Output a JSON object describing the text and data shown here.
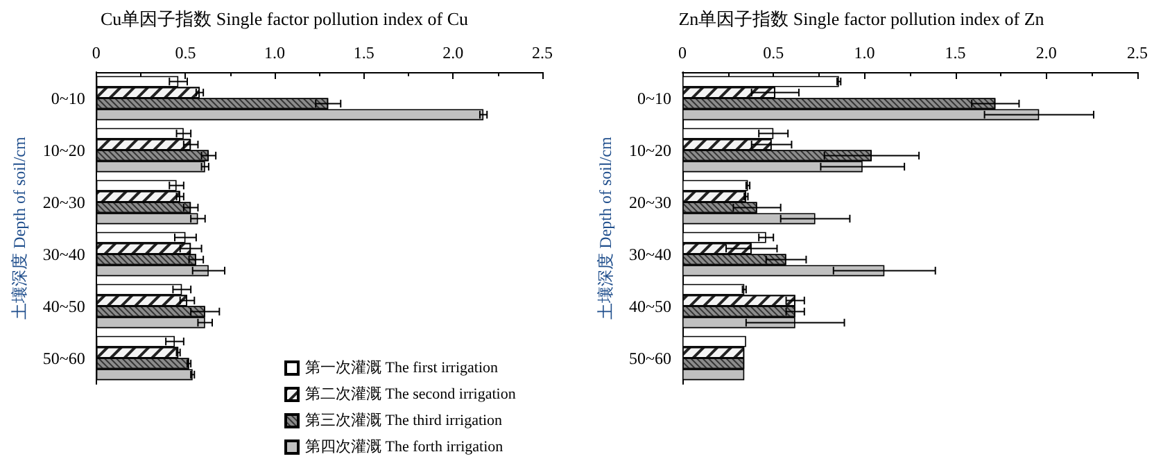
{
  "chart_data": [
    {
      "type": "bar",
      "orientation": "horizontal",
      "title": "Cu单因子指数 Single factor pollution index of Cu",
      "ylabel": "土壤深度 Depth of soil/cm",
      "categories": [
        "0~10",
        "10~20",
        "20~30",
        "30~40",
        "40~50",
        "50~60"
      ],
      "xlim": [
        0,
        2.5
      ],
      "xticks": [
        {
          "value": 0,
          "label": "0"
        },
        {
          "value": 0.5,
          "label": "0.5"
        },
        {
          "value": 1,
          "label": "1.0"
        },
        {
          "value": 1.5,
          "label": "1.5"
        },
        {
          "value": 2,
          "label": "2.0"
        },
        {
          "value": 2.5,
          "label": "2.5"
        }
      ],
      "legend": "bottom right",
      "grid": false,
      "series": [
        {
          "name": "第一次灌溉 The first irrigation",
          "color": "#ffffff",
          "values": [
            0.46,
            0.49,
            0.45,
            0.5,
            0.48,
            0.44
          ],
          "errors": [
            0.05,
            0.04,
            0.04,
            0.06,
            0.05,
            0.05
          ]
        },
        {
          "name": "第二次灌溉 The second irrigation",
          "color": "#f4f4f4",
          "values": [
            0.58,
            0.53,
            0.47,
            0.53,
            0.51,
            0.46
          ],
          "errors": [
            0.02,
            0.04,
            0.02,
            0.06,
            0.04,
            0.01
          ]
        },
        {
          "name": "第三次灌溉 The third irrigation",
          "color": "#8c8c8c",
          "values": [
            1.3,
            0.63,
            0.53,
            0.56,
            0.61,
            0.52
          ],
          "errors": [
            0.07,
            0.04,
            0.04,
            0.04,
            0.08,
            0.01
          ]
        },
        {
          "name": "第四次灌溉 The forth irrigation",
          "color": "#c0c0c0",
          "values": [
            2.17,
            0.61,
            0.57,
            0.63,
            0.61,
            0.54
          ],
          "errors": [
            0.02,
            0.02,
            0.04,
            0.09,
            0.04,
            0.01
          ]
        }
      ]
    },
    {
      "type": "bar",
      "orientation": "horizontal",
      "title": "Zn单因子指数 Single factor pollution index of Zn",
      "ylabel": "土壤深度 Depth of soil/cm",
      "categories": [
        "0~10",
        "10~20",
        "20~30",
        "30~40",
        "40~50",
        "50~60"
      ],
      "xlim": [
        0,
        2.5
      ],
      "xticks": [
        {
          "value": 0,
          "label": "0"
        },
        {
          "value": 0.5,
          "label": "0.5"
        },
        {
          "value": 1,
          "label": "1.0"
        },
        {
          "value": 1.5,
          "label": "1.5"
        },
        {
          "value": 2,
          "label": "2.0"
        },
        {
          "value": 2.5,
          "label": "2.5"
        }
      ],
      "grid": false,
      "series": [
        {
          "color": "#ffffff",
          "values": [
            0.86,
            0.5,
            0.36,
            0.46,
            0.34,
            0.35
          ],
          "errors": [
            0.01,
            0.08,
            0.01,
            0.04,
            0.01,
            null
          ]
        },
        {
          "color": "#f4f4f4",
          "values": [
            0.51,
            0.49,
            0.35,
            0.38,
            0.62,
            0.34
          ],
          "errors": [
            0.13,
            0.11,
            0.01,
            0.14,
            0.05,
            null
          ]
        },
        {
          "color": "#8c8c8c",
          "values": [
            1.72,
            1.04,
            0.41,
            0.57,
            0.62,
            0.34
          ],
          "errors": [
            0.13,
            0.26,
            0.13,
            0.11,
            0.05,
            null
          ]
        },
        {
          "color": "#c0c0c0",
          "values": [
            1.96,
            0.99,
            0.73,
            1.11,
            0.62,
            0.34
          ],
          "errors": [
            0.3,
            0.23,
            0.19,
            0.28,
            0.27,
            null
          ]
        }
      ]
    }
  ]
}
